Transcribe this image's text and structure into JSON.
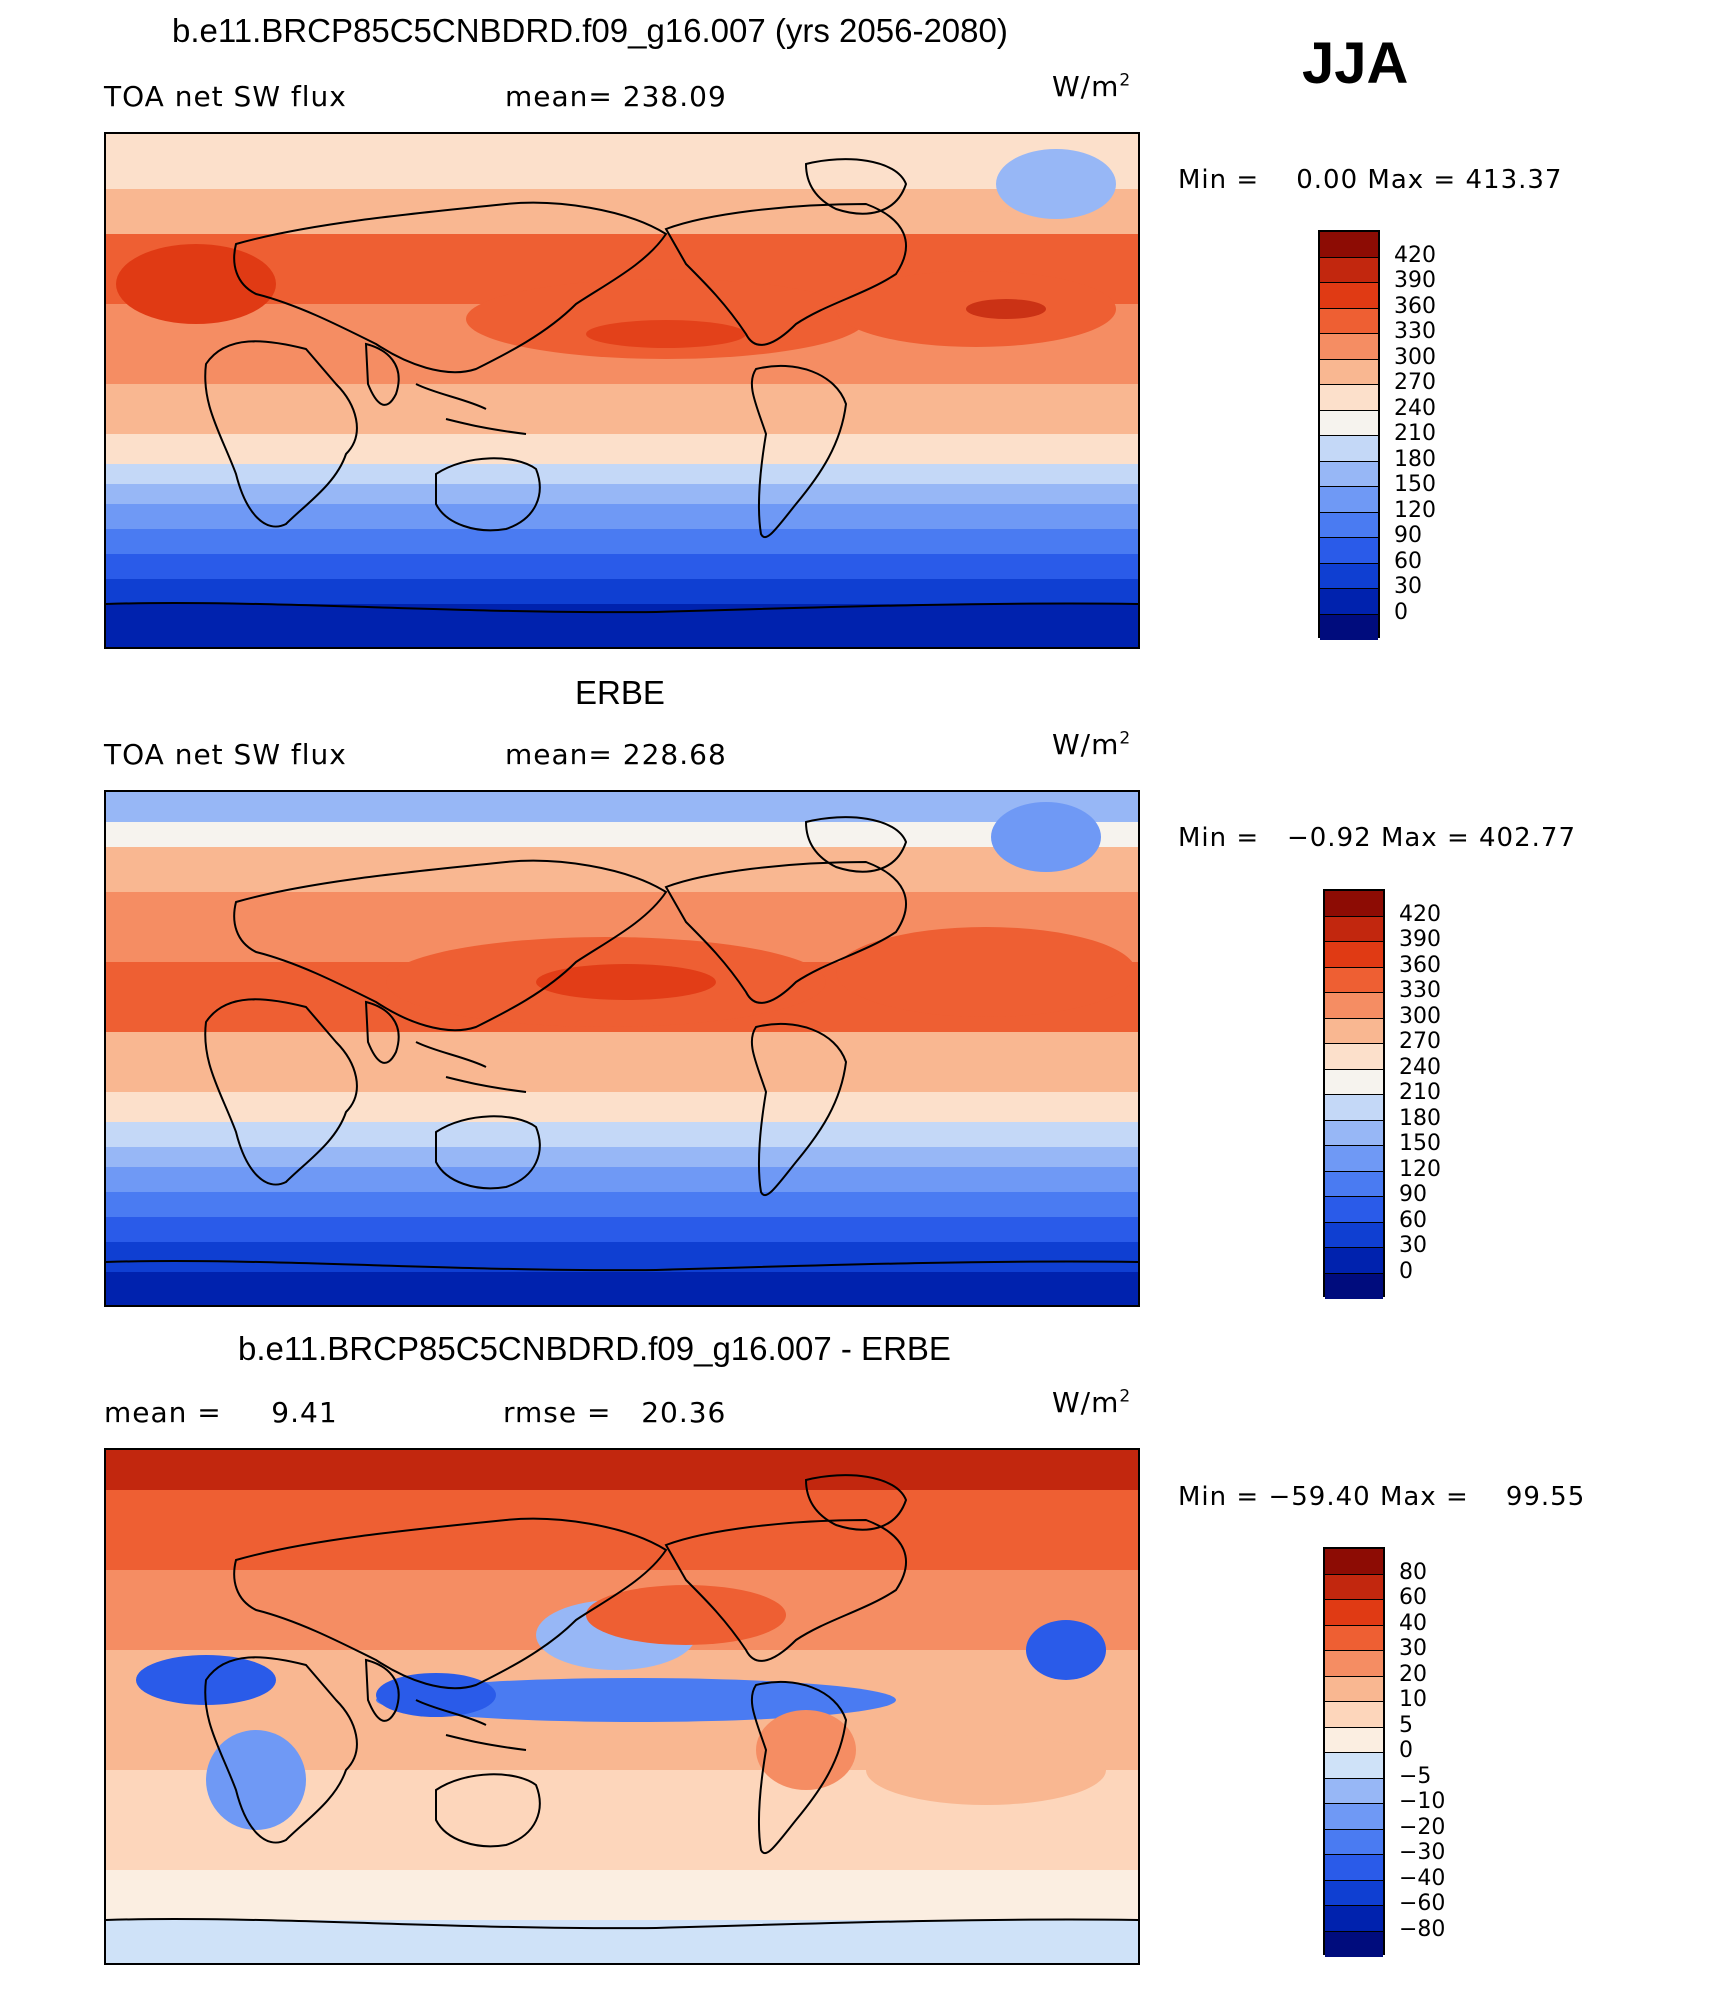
{
  "season": "JJA",
  "colors": {
    "abs_scale": [
      "#000c7d",
      "#0022ae",
      "#0f3fd2",
      "#2a5be9",
      "#4a7bf2",
      "#6f99f5",
      "#97b7f6",
      "#c4d8f7",
      "#f6f3ee",
      "#fce0cb",
      "#f9b791",
      "#f58d63",
      "#ee5f33",
      "#e03a14",
      "#c2270e",
      "#8d0c04"
    ],
    "diff_scale": [
      "#000c7d",
      "#0022ae",
      "#0f3fd2",
      "#2a5be9",
      "#4a7bf2",
      "#6f99f5",
      "#97b7f6",
      "#cfe2f8",
      "#fbeee1",
      "#fdd6bb",
      "#f9b791",
      "#f58d63",
      "#ee5f33",
      "#e03a14",
      "#c2270e",
      "#8d0c04"
    ],
    "land_outline": "#000000"
  },
  "chart_data": [
    {
      "type": "heatmap",
      "title": "b.e11.BRCP85C5CNBDRD.f09_g16.007 (yrs 2056-2080)",
      "variable": "TOA net SW flux",
      "stat_label": "mean=",
      "stat_value": "238.09",
      "units": "W/m",
      "units_exp": "2",
      "min_label": "Min =",
      "min_value": "0.00",
      "max_label": "Max =",
      "max_value": "413.37",
      "colorbar_ticks": [
        "420",
        "390",
        "360",
        "330",
        "300",
        "270",
        "240",
        "210",
        "180",
        "150",
        "120",
        "90",
        "60",
        "30",
        "0"
      ]
    },
    {
      "type": "heatmap",
      "title": "ERBE",
      "variable": "TOA net SW flux",
      "stat_label": "mean=",
      "stat_value": "228.68",
      "units": "W/m",
      "units_exp": "2",
      "min_label": "Min =",
      "min_value": "−0.92",
      "max_label": "Max =",
      "max_value": "402.77",
      "colorbar_ticks": [
        "420",
        "390",
        "360",
        "330",
        "300",
        "270",
        "240",
        "210",
        "180",
        "150",
        "120",
        "90",
        "60",
        "30",
        "0"
      ]
    },
    {
      "type": "heatmap",
      "title": "b.e11.BRCP85C5CNBDRD.f09_g16.007 - ERBE",
      "stat_label": "mean =",
      "stat_value": "9.41",
      "stat2_label": "rmse =",
      "stat2_value": "20.36",
      "units": "W/m",
      "units_exp": "2",
      "min_label": "Min =",
      "min_value": "−59.40",
      "max_label": "Max =",
      "max_value": "99.55",
      "colorbar_ticks": [
        "80",
        "60",
        "40",
        "30",
        "20",
        "10",
        "5",
        "0",
        "−5",
        "−10",
        "−20",
        "−30",
        "−40",
        "−60",
        "−80"
      ]
    }
  ]
}
